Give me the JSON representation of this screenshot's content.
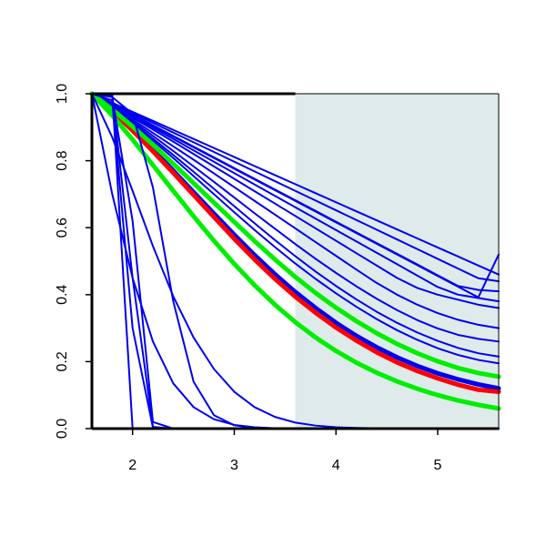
{
  "chart_data": {
    "type": "line",
    "title": "",
    "xlabel": "",
    "ylabel": "",
    "xlim": [
      1.6,
      5.6
    ],
    "ylim": [
      0.0,
      1.0
    ],
    "grid": false,
    "legend": "none",
    "x_ticks": [
      "2",
      "3",
      "4",
      "5"
    ],
    "y_ticks": [
      "0.0",
      "0.2",
      "0.4",
      "0.6",
      "0.8",
      "1.0"
    ],
    "shaded_region": {
      "x_from": 3.6,
      "x_to": 5.6,
      "color": "#deebea"
    },
    "colors": {
      "blue": "#0000ee",
      "red": "#ff0000",
      "green": "#00ee00",
      "axis": "#000000"
    },
    "x": [
      1.6,
      1.8,
      2.0,
      2.2,
      2.4,
      2.6,
      2.8,
      3.0,
      3.2,
      3.4,
      3.6,
      3.8,
      4.0,
      4.2,
      4.4,
      4.6,
      4.8,
      5.0,
      5.2,
      5.4,
      5.6
    ],
    "series": [
      {
        "color": "blue",
        "width": 2,
        "values": [
          1.0,
          0.968,
          0.936,
          0.904,
          0.872,
          0.84,
          0.808,
          0.776,
          0.744,
          0.712,
          0.68,
          0.648,
          0.616,
          0.584,
          0.552,
          0.52,
          0.488,
          0.456,
          0.424,
          0.392,
          0.52
        ]
      },
      {
        "color": "blue",
        "width": 2,
        "values": [
          1.0,
          0.973,
          0.946,
          0.919,
          0.892,
          0.865,
          0.838,
          0.811,
          0.784,
          0.757,
          0.73,
          0.703,
          0.676,
          0.649,
          0.622,
          0.595,
          0.568,
          0.541,
          0.514,
          0.487,
          0.46
        ]
      },
      {
        "color": "blue",
        "width": 2,
        "values": [
          1.0,
          0.971,
          0.942,
          0.913,
          0.884,
          0.855,
          0.826,
          0.797,
          0.768,
          0.739,
          0.71,
          0.681,
          0.652,
          0.623,
          0.594,
          0.565,
          0.536,
          0.507,
          0.478,
          0.449,
          0.44
        ]
      },
      {
        "color": "blue",
        "width": 2,
        "values": [
          1.0,
          0.969,
          0.938,
          0.906,
          0.874,
          0.842,
          0.81,
          0.778,
          0.746,
          0.714,
          0.682,
          0.65,
          0.618,
          0.586,
          0.554,
          0.522,
          0.49,
          0.458,
          0.426,
          0.414,
          0.41
        ]
      },
      {
        "color": "blue",
        "width": 2,
        "values": [
          1.0,
          0.967,
          0.933,
          0.899,
          0.865,
          0.831,
          0.797,
          0.763,
          0.729,
          0.695,
          0.661,
          0.627,
          0.593,
          0.559,
          0.525,
          0.491,
          0.457,
          0.423,
          0.4,
          0.39,
          0.38
        ]
      },
      {
        "color": "blue",
        "width": 2,
        "values": [
          1.0,
          0.965,
          0.929,
          0.893,
          0.857,
          0.82,
          0.783,
          0.746,
          0.709,
          0.672,
          0.635,
          0.598,
          0.561,
          0.524,
          0.487,
          0.45,
          0.42,
          0.4,
          0.385,
          0.37,
          0.36
        ]
      },
      {
        "color": "blue",
        "width": 2,
        "values": [
          1.0,
          0.962,
          0.923,
          0.883,
          0.843,
          0.803,
          0.762,
          0.721,
          0.68,
          0.639,
          0.598,
          0.557,
          0.516,
          0.475,
          0.435,
          0.4,
          0.37,
          0.345,
          0.325,
          0.31,
          0.3
        ]
      },
      {
        "color": "blue",
        "width": 2,
        "values": [
          1.0,
          0.96,
          0.918,
          0.874,
          0.829,
          0.783,
          0.737,
          0.69,
          0.643,
          0.597,
          0.551,
          0.507,
          0.465,
          0.425,
          0.388,
          0.354,
          0.324,
          0.299,
          0.28,
          0.268,
          0.26
        ]
      },
      {
        "color": "blue",
        "width": 2,
        "values": [
          1.0,
          0.958,
          0.913,
          0.866,
          0.817,
          0.767,
          0.716,
          0.664,
          0.613,
          0.563,
          0.515,
          0.469,
          0.426,
          0.386,
          0.349,
          0.316,
          0.287,
          0.262,
          0.241,
          0.225,
          0.215
        ]
      },
      {
        "color": "blue",
        "width": 2,
        "values": [
          1.0,
          0.957,
          0.91,
          0.86,
          0.808,
          0.754,
          0.7,
          0.646,
          0.593,
          0.542,
          0.493,
          0.447,
          0.404,
          0.364,
          0.327,
          0.294,
          0.265,
          0.24,
          0.22,
          0.205,
          0.195
        ]
      },
      {
        "color": "blue",
        "width": 5,
        "values": [
          1.0,
          0.949,
          0.893,
          0.833,
          0.77,
          0.706,
          0.642,
          0.579,
          0.518,
          0.461,
          0.408,
          0.36,
          0.316,
          0.277,
          0.243,
          0.213,
          0.187,
          0.165,
          0.147,
          0.132,
          0.12
        ]
      },
      {
        "color": "red",
        "width": 5,
        "values": [
          1.0,
          0.948,
          0.89,
          0.828,
          0.764,
          0.698,
          0.632,
          0.567,
          0.505,
          0.447,
          0.394,
          0.346,
          0.302,
          0.263,
          0.228,
          0.198,
          0.172,
          0.15,
          0.131,
          0.116,
          0.11
        ]
      },
      {
        "color": "green",
        "width": 5,
        "values": [
          1.0,
          0.953,
          0.902,
          0.848,
          0.791,
          0.733,
          0.675,
          0.617,
          0.56,
          0.505,
          0.453,
          0.405,
          0.361,
          0.321,
          0.285,
          0.253,
          0.225,
          0.201,
          0.181,
          0.166,
          0.155
        ]
      },
      {
        "color": "green",
        "width": 5,
        "values": [
          1.0,
          0.935,
          0.863,
          0.787,
          0.71,
          0.634,
          0.561,
          0.492,
          0.428,
          0.37,
          0.318,
          0.272,
          0.232,
          0.197,
          0.167,
          0.141,
          0.119,
          0.1,
          0.084,
          0.071,
          0.06
        ]
      },
      {
        "color": "blue",
        "width": 2,
        "values": [
          1.0,
          0.87,
          0.71,
          0.545,
          0.395,
          0.272,
          0.178,
          0.11,
          0.064,
          0.035,
          0.018,
          0.009,
          0.004,
          0.002,
          0.001,
          0.0,
          0.0,
          0.0,
          0.0,
          0.0,
          0.0
        ]
      },
      {
        "color": "blue",
        "width": 2,
        "values": [
          1.0,
          0.99,
          0.94,
          0.72,
          0.38,
          0.14,
          0.04,
          0.01,
          0.002,
          0.0,
          0.0,
          0.0,
          0.0,
          0.0,
          0.0,
          0.0,
          0.0,
          0.0,
          0.0,
          0.0,
          0.0
        ]
      },
      {
        "color": "blue",
        "width": 2,
        "values": [
          1.0,
          0.7,
          0.45,
          0.26,
          0.135,
          0.064,
          0.028,
          0.011,
          0.004,
          0.001,
          0.0,
          0.0,
          0.0,
          0.0,
          0.0,
          0.0,
          0.0,
          0.0,
          0.0,
          0.0,
          0.0
        ]
      },
      {
        "color": "blue",
        "width": 2,
        "values": [
          1.0,
          0.99,
          0.62,
          0.02,
          0.0,
          0.0,
          0.0,
          0.0,
          0.0,
          0.0,
          0.0,
          0.0,
          0.0,
          0.0,
          0.0,
          0.0,
          0.0,
          0.0,
          0.0,
          0.0,
          0.0
        ]
      },
      {
        "color": "blue",
        "width": 2,
        "values": [
          1.0,
          0.995,
          0.45,
          0.005,
          0.0,
          0.0,
          0.0,
          0.0,
          0.0,
          0.0,
          0.0,
          0.0,
          0.0,
          0.0,
          0.0,
          0.0,
          0.0,
          0.0,
          0.0,
          0.0,
          0.0
        ]
      },
      {
        "color": "blue",
        "width": 2,
        "values": [
          1.0,
          0.98,
          0.3,
          0.003,
          0.0,
          0.0,
          0.0,
          0.0,
          0.0,
          0.0,
          0.0,
          0.0,
          0.0,
          0.0,
          0.0,
          0.0,
          0.0,
          0.0,
          0.0,
          0.0,
          0.0
        ]
      },
      {
        "color": "blue",
        "width": 2,
        "values": [
          1.0,
          0.998,
          0.0,
          0.0,
          0.0,
          0.0,
          0.0,
          0.0,
          0.0,
          0.0,
          0.0,
          0.0,
          0.0,
          0.0,
          0.0,
          0.0,
          0.0,
          0.0,
          0.0,
          0.0,
          0.0
        ]
      }
    ]
  }
}
